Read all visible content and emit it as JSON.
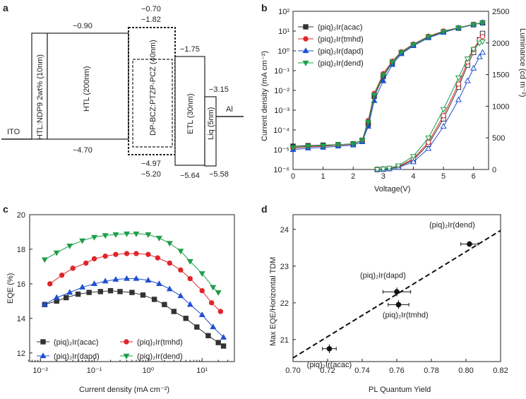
{
  "chart_data": [
    {
      "panel": "a",
      "type": "energy-level diagram",
      "layers": [
        {
          "name": "ITO",
          "label": "ITO"
        },
        {
          "name": "HTL-doped",
          "label": "HTL:NDP9 2wt% (10nm)"
        },
        {
          "name": "HTL",
          "label": "HTL (200nm)",
          "lumo": "−0.90",
          "homo": "−4.70"
        },
        {
          "name": "EML",
          "label": "DP-BCZ:PTZP-PCZ (40nm)",
          "lumo_outer": "−0.70",
          "lumo_inner": "−1.82",
          "homo_inner": "−4.97",
          "homo_outer": "−5.20"
        },
        {
          "name": "ETL",
          "label": "ETL (30nm)",
          "lumo": "−1.75",
          "homo": "−5.64"
        },
        {
          "name": "Liq",
          "label": "Liq (5nm)",
          "lumo": "−3.15",
          "homo": "−5.58"
        },
        {
          "name": "Al",
          "label": "Al"
        }
      ]
    },
    {
      "panel": "b",
      "type": "line",
      "xlabel": "Voltage(V)",
      "ylabel": "Current density (mA cm⁻²)",
      "ylabel2": "Luminance (cd m⁻²)",
      "xlim": [
        0,
        6.5
      ],
      "xticks": [
        "0",
        "1",
        "2",
        "3",
        "4",
        "5",
        "6"
      ],
      "ylim_log_exp": [
        -6,
        2
      ],
      "yticks": [
        "10⁻⁶",
        "10⁻⁵",
        "10⁻⁴",
        "10⁻³",
        "10⁻²",
        "10⁻¹",
        "10⁰",
        "10¹",
        "10²"
      ],
      "y2lim": [
        0,
        2500
      ],
      "y2ticks": [
        "0",
        "500",
        "1000",
        "1500",
        "2000",
        "2500"
      ],
      "legend": [
        "(piq)₂Ir(acac)",
        "(piq)₂Ir(tmhd)",
        "(piq)₂Ir(dapd)",
        "(piq)₂Ir(dend)"
      ],
      "series": [
        {
          "name": "(piq)₂Ir(acac)",
          "color": "#333333",
          "marker": "square",
          "current_x": [
            0,
            0.5,
            1,
            1.5,
            2,
            2.3,
            2.5,
            2.7,
            3,
            3.3,
            3.6,
            4,
            4.5,
            5,
            5.5,
            6,
            6.3
          ],
          "current_y": [
            1.5e-05,
            1.6e-05,
            1.7e-05,
            1.8e-05,
            2e-05,
            3e-05,
            0.0002,
            0.005,
            0.05,
            0.25,
            0.8,
            2,
            5,
            9,
            14,
            21,
            26
          ],
          "lum_x": [
            2.8,
            3,
            3.2,
            3.5,
            4,
            4.5,
            5,
            5.5,
            5.8,
            6,
            6.2,
            6.3
          ],
          "lum_y": [
            0,
            5,
            15,
            40,
            150,
            400,
            800,
            1300,
            1650,
            1850,
            2050,
            2150
          ]
        },
        {
          "name": "(piq)₂Ir(tmhd)",
          "color": "#e0262b",
          "marker": "circle",
          "current_x": [
            0,
            0.5,
            1,
            1.5,
            2,
            2.3,
            2.5,
            2.7,
            3,
            3.3,
            3.6,
            4,
            4.5,
            5,
            5.5,
            6,
            6.3
          ],
          "current_y": [
            1.2e-05,
            1.4e-05,
            1.5e-05,
            1.7e-05,
            1.9e-05,
            3e-05,
            0.0003,
            0.007,
            0.07,
            0.3,
            0.9,
            2.2,
            5.5,
            10,
            15,
            22,
            27
          ],
          "lum_x": [
            2.8,
            3,
            3.2,
            3.5,
            4,
            4.5,
            5,
            5.5,
            5.8,
            6,
            6.2,
            6.3
          ],
          "lum_y": [
            0,
            5,
            15,
            45,
            170,
            430,
            850,
            1350,
            1700,
            1900,
            2050,
            2100
          ]
        },
        {
          "name": "(piq)₂Ir(dapd)",
          "color": "#1f4fd1",
          "marker": "triangle-up",
          "current_x": [
            0,
            0.5,
            1,
            1.5,
            2,
            2.3,
            2.5,
            2.7,
            3,
            3.3,
            3.6,
            4,
            4.5,
            5,
            5.5,
            6,
            6.3
          ],
          "current_y": [
            1e-05,
            1.2e-05,
            1.3e-05,
            1.5e-05,
            1.7e-05,
            2.5e-05,
            0.00015,
            0.003,
            0.03,
            0.2,
            0.7,
            1.8,
            4.5,
            8.5,
            14,
            21,
            27
          ],
          "lum_x": [
            2.8,
            3,
            3.2,
            3.5,
            4,
            4.5,
            5,
            5.5,
            5.8,
            6,
            6.2,
            6.3
          ],
          "lum_y": [
            0,
            3,
            10,
            30,
            120,
            330,
            680,
            1100,
            1400,
            1600,
            1780,
            1850
          ]
        },
        {
          "name": "(piq)₂Ir(dend)",
          "color": "#1e9e4a",
          "marker": "triangle-down",
          "current_x": [
            0,
            0.5,
            1,
            1.5,
            2,
            2.3,
            2.5,
            2.7,
            3,
            3.3,
            3.6,
            4,
            4.5,
            5,
            5.5,
            6,
            6.3
          ],
          "current_y": [
            1.3e-05,
            1.5e-05,
            1.6e-05,
            1.8e-05,
            2e-05,
            3e-05,
            0.00025,
            0.006,
            0.06,
            0.28,
            0.85,
            2.1,
            5.2,
            9.5,
            14.5,
            21.5,
            26
          ],
          "lum_x": [
            2.8,
            3,
            3.2,
            3.5,
            4,
            4.5,
            5,
            5.5,
            5.8,
            6,
            6.2,
            6.3
          ],
          "lum_y": [
            0,
            8,
            22,
            60,
            210,
            500,
            950,
            1450,
            1750,
            1900,
            2000,
            2020
          ]
        }
      ]
    },
    {
      "panel": "c",
      "type": "line",
      "xlabel": "Current density (mA cm⁻²)",
      "ylabel": "EQE (%)",
      "xlim_log_exp": [
        -2.2,
        1.6
      ],
      "xticks": [
        "10⁻²",
        "10⁻¹",
        "10⁰",
        "10¹"
      ],
      "ylim": [
        11.5,
        20
      ],
      "yticks": [
        "12",
        "14",
        "16",
        "18",
        "20"
      ],
      "legend": [
        "(piq)₂Ir(acac)",
        "(piq)₂Ir(tmhd)",
        "(piq)₂Ir(dapd)",
        "(piq)₂Ir(dend)"
      ],
      "series": [
        {
          "name": "(piq)₂Ir(acac)",
          "color": "#333333",
          "marker": "square",
          "x": [
            0.012,
            0.02,
            0.03,
            0.05,
            0.08,
            0.13,
            0.2,
            0.3,
            0.5,
            0.8,
            1.3,
            2,
            3,
            5,
            8,
            13,
            20,
            25
          ],
          "y": [
            14.8,
            15.0,
            15.2,
            15.4,
            15.5,
            15.55,
            15.6,
            15.55,
            15.5,
            15.35,
            15.1,
            14.8,
            14.4,
            14.0,
            13.5,
            13.0,
            12.6,
            12.4
          ]
        },
        {
          "name": "(piq)₂Ir(tmhd)",
          "color": "#e0262b",
          "marker": "circle",
          "x": [
            0.015,
            0.025,
            0.04,
            0.07,
            0.1,
            0.16,
            0.25,
            0.4,
            0.6,
            1,
            1.5,
            2.5,
            4,
            6,
            10,
            15,
            22
          ],
          "y": [
            16.0,
            16.5,
            16.9,
            17.2,
            17.45,
            17.6,
            17.7,
            17.75,
            17.75,
            17.7,
            17.5,
            17.2,
            16.8,
            16.3,
            15.6,
            14.9,
            14.4
          ]
        },
        {
          "name": "(piq)₂Ir(dapd)",
          "color": "#1f4fd1",
          "marker": "triangle-up",
          "x": [
            0.012,
            0.02,
            0.035,
            0.06,
            0.1,
            0.16,
            0.25,
            0.4,
            0.6,
            1,
            1.6,
            2.5,
            4,
            6,
            10,
            16,
            25
          ],
          "y": [
            14.8,
            15.2,
            15.5,
            15.8,
            16.0,
            16.15,
            16.25,
            16.3,
            16.3,
            16.2,
            16.0,
            15.7,
            15.3,
            14.8,
            14.2,
            13.5,
            12.9
          ]
        },
        {
          "name": "(piq)₂Ir(dend)",
          "color": "#1e9e4a",
          "marker": "triangle-down",
          "x": [
            0.012,
            0.02,
            0.035,
            0.06,
            0.1,
            0.16,
            0.25,
            0.4,
            0.6,
            1,
            1.6,
            2.5,
            4,
            6,
            10,
            16,
            20
          ],
          "y": [
            17.4,
            17.8,
            18.2,
            18.5,
            18.7,
            18.8,
            18.85,
            18.9,
            18.9,
            18.85,
            18.65,
            18.35,
            17.9,
            17.3,
            16.6,
            15.8,
            15.5
          ]
        }
      ]
    },
    {
      "panel": "d",
      "type": "scatter",
      "xlabel": "PL Quantum Yield",
      "ylabel": "Max EQE/Horizontal TDM",
      "xlim": [
        0.7,
        0.82
      ],
      "xticks": [
        "0.70",
        "0.72",
        "0.74",
        "0.76",
        "0.78",
        "0.80",
        "0.82"
      ],
      "ylim": [
        20.4,
        24.4
      ],
      "yticks": [
        "21",
        "22",
        "23",
        "24"
      ],
      "points": [
        {
          "name": "(piq)₂Ir(acac)",
          "x": 0.721,
          "y": 20.75,
          "xerr": 0.004,
          "yerr": 0.12
        },
        {
          "name": "(piq)₂Ir(dapd)",
          "x": 0.76,
          "y": 22.3,
          "xerr": 0.008,
          "yerr": 0.12
        },
        {
          "name": "(piq)₂Ir(tmhd)",
          "x": 0.761,
          "y": 21.95,
          "xerr": 0.006,
          "yerr": 0.12
        },
        {
          "name": "(piq)₂Ir(dend)",
          "x": 0.802,
          "y": 23.6,
          "xerr": 0.005,
          "yerr": 0.08
        }
      ],
      "fit": {
        "x": [
          0.7,
          0.82
        ],
        "y": [
          20.5,
          23.97
        ]
      }
    }
  ],
  "panel_labels": {
    "a": "a",
    "b": "b",
    "c": "c",
    "d": "d"
  }
}
